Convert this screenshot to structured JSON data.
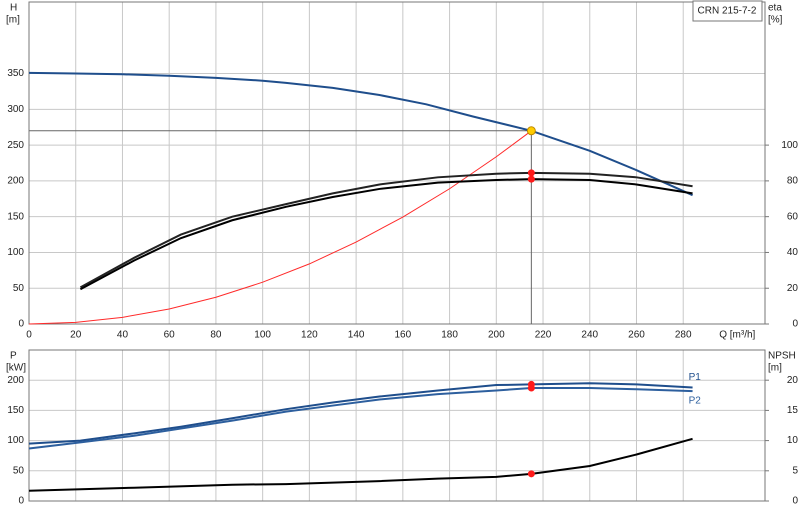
{
  "chart_data": [
    {
      "type": "line",
      "legend_text": "CRN 215-7-2",
      "xlabel": "Q [m³/h]",
      "ylabel": "H",
      "yunit": "[m]",
      "y2label": "eta",
      "y2unit": "[%]",
      "xlim": [
        0,
        315
      ],
      "ylim": [
        0,
        450
      ],
      "y2lim": [
        0,
        180
      ],
      "xticks": [
        0,
        20,
        40,
        60,
        80,
        100,
        120,
        140,
        160,
        180,
        200,
        220,
        240,
        260,
        280
      ],
      "yticks": [
        0,
        50,
        100,
        150,
        200,
        250,
        300,
        350
      ],
      "y2ticks": [
        0,
        20,
        40,
        60,
        80,
        100
      ],
      "grid": true,
      "series": [
        {
          "color": "#1f4e8c",
          "x": [
            0,
            20,
            40,
            60,
            80,
            100,
            110,
            130,
            150,
            170,
            190,
            215,
            240,
            260,
            284
          ],
          "values": [
            351,
            350,
            349,
            347,
            344,
            340,
            337,
            330,
            320,
            307,
            290,
            270,
            242,
            215,
            180
          ]
        },
        {
          "color": "#ff2a2a",
          "x": [
            0,
            20,
            40,
            60,
            80,
            100,
            120,
            140,
            160,
            180,
            200,
            215
          ],
          "values": [
            0,
            2.3,
            9.3,
            21,
            37.4,
            58.4,
            84,
            114.5,
            149.5,
            189,
            233.7,
            270
          ]
        },
        {
          "color": "#222222",
          "axis": "y2",
          "x": [
            22,
            45,
            65,
            87,
            110,
            130,
            150,
            175,
            200,
            215,
            240,
            260,
            284
          ],
          "values": [
            20.5,
            37,
            50,
            60,
            67,
            73,
            78,
            82,
            84,
            84.5,
            84,
            82,
            77
          ]
        },
        {
          "color": "#000000",
          "axis": "y2",
          "x": [
            22,
            45,
            65,
            87,
            110,
            130,
            150,
            175,
            200,
            215,
            240,
            260,
            284
          ],
          "values": [
            19.4,
            35.5,
            48,
            58,
            65.5,
            71,
            75.5,
            79,
            80.5,
            81,
            80.5,
            78,
            73
          ]
        }
      ],
      "duty_point": {
        "x": 215,
        "y": 270
      },
      "operating_points": [
        {
          "x": 215,
          "y": 84.5,
          "axis": "y2"
        },
        {
          "x": 215,
          "y": 81,
          "axis": "y2"
        }
      ]
    },
    {
      "type": "line",
      "ylabel": "P",
      "yunit": "[kW]",
      "y2label": "NPSH",
      "y2unit": "[m]",
      "xlim": [
        0,
        315
      ],
      "ylim": [
        0,
        250
      ],
      "y2lim": [
        0,
        25
      ],
      "xticks": [
        0,
        20,
        40,
        60,
        80,
        100,
        120,
        140,
        160,
        180,
        200,
        220,
        240,
        260,
        280
      ],
      "yticks": [
        0,
        50,
        100,
        150,
        200
      ],
      "y2ticks": [
        0,
        5,
        10,
        15,
        20
      ],
      "grid": true,
      "series": [
        {
          "name": "P1",
          "color": "#1f4e8c",
          "x": [
            0,
            22,
            45,
            65,
            87,
            110,
            130,
            150,
            175,
            200,
            215,
            240,
            260,
            284
          ],
          "values": [
            95,
            100,
            112,
            123,
            137,
            152,
            163,
            173,
            183,
            192,
            193,
            195,
            193,
            188
          ]
        },
        {
          "name": "P2",
          "color": "#2d5f9e",
          "x": [
            0,
            22,
            45,
            65,
            87,
            110,
            130,
            150,
            175,
            200,
            215,
            240,
            260,
            284
          ],
          "values": [
            87,
            97,
            108,
            120,
            133,
            148,
            158,
            168,
            177,
            183,
            187,
            187,
            185,
            182
          ]
        },
        {
          "color": "#000000",
          "axis": "y2",
          "x": [
            0,
            45,
            87,
            110,
            150,
            175,
            200,
            215,
            240,
            260,
            284
          ],
          "values": [
            1.7,
            2.2,
            2.7,
            2.8,
            3.3,
            3.7,
            4,
            4.5,
            5.8,
            7.7,
            10.3
          ]
        }
      ],
      "operating_points": [
        {
          "x": 215,
          "y": 193
        },
        {
          "x": 215,
          "y": 187
        },
        {
          "x": 215,
          "y": 4.5,
          "axis": "y2"
        }
      ]
    }
  ]
}
